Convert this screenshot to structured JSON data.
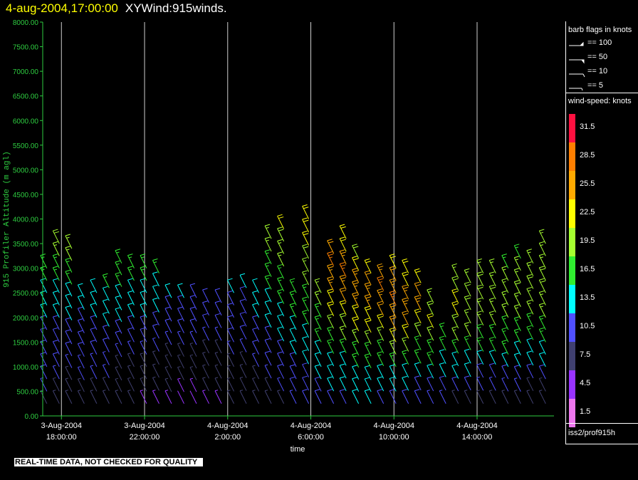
{
  "header": {
    "date_time": "4-aug-2004,17:00:00",
    "title": "XYWind:915winds."
  },
  "colors": {
    "background": "#000000",
    "axis": "#2ecc40",
    "text": "#ffffff",
    "title_date": "#ffff00"
  },
  "legend": {
    "barb_title": "barb flags in knots",
    "barb_entries": [
      "== 100",
      "== 50",
      "== 10",
      "== 5"
    ],
    "speed_title": "wind-speed: knots",
    "speed_levels": [
      {
        "label": "31.5",
        "color": "#ff1040"
      },
      {
        "label": "28.5",
        "color": "#ff7f00"
      },
      {
        "label": "25.5",
        "color": "#ffaa00"
      },
      {
        "label": "22.5",
        "color": "#ffff00"
      },
      {
        "label": "19.5",
        "color": "#a6ff30"
      },
      {
        "label": "16.5",
        "color": "#30ee30"
      },
      {
        "label": "13.5",
        "color": "#00ffff"
      },
      {
        "label": "10.5",
        "color": "#5050ff"
      },
      {
        "label": "7.5",
        "color": "#404070"
      },
      {
        "label": "4.5",
        "color": "#9933ff"
      },
      {
        "label": "1.5",
        "color": "#ee77ee"
      }
    ],
    "source": "iss2/prof915h"
  },
  "footer": {
    "disclaimer": "REAL-TIME DATA, NOT CHECKED FOR QUALITY"
  },
  "chart_data": {
    "type": "scatter",
    "subtype": "wind-barb time-height",
    "xlabel": "time",
    "ylabel": "915 Profiler Altitude (m agl)",
    "ylim": [
      0,
      8000
    ],
    "y_ticks": [
      "0.00",
      "500.00",
      "1000.00",
      "1500.00",
      "2000.00",
      "2500.00",
      "3000.00",
      "3500.00",
      "4000.00",
      "4500.00",
      "5000.00",
      "5500.00",
      "6000.00",
      "6500.00",
      "7000.00",
      "7500.00",
      "8000.00"
    ],
    "x_ticks": [
      {
        "date": "3-Aug-2004",
        "time": "18:00:00"
      },
      {
        "date": "3-Aug-2004",
        "time": "22:00:00"
      },
      {
        "date": "4-Aug-2004",
        "time": "2:00:00"
      },
      {
        "date": "4-Aug-2004",
        "time": "6:00:00"
      },
      {
        "date": "4-Aug-2004",
        "time": "10:00:00"
      },
      {
        "date": "4-Aug-2004",
        "time": "14:00:00"
      }
    ],
    "x_range_hours": [
      17.1,
      41.7
    ],
    "x_tick_hours": [
      18,
      22,
      26,
      30,
      34,
      38
    ],
    "grid_x": true,
    "wind_speed_units": "knots",
    "profiles": [
      {
        "t": 17.3,
        "top": 3000,
        "speeds": [
          8,
          9,
          10,
          10,
          10,
          11,
          11,
          12,
          13,
          14,
          15,
          17
        ]
      },
      {
        "t": 17.9,
        "top": 3500,
        "speeds": [
          7,
          8,
          9,
          10,
          10,
          11,
          11,
          12,
          13,
          14,
          15,
          16,
          18,
          20
        ]
      },
      {
        "t": 18.5,
        "top": 3400,
        "speeds": [
          7,
          8,
          8,
          9,
          10,
          10,
          11,
          12,
          13,
          14,
          15,
          16,
          18,
          19
        ]
      },
      {
        "t": 19.1,
        "top": 2400,
        "speeds": [
          7,
          8,
          9,
          9,
          10,
          10,
          11,
          11,
          12,
          13
        ]
      },
      {
        "t": 19.7,
        "top": 2500,
        "speeds": [
          8,
          8,
          9,
          9,
          10,
          11,
          11,
          12,
          13,
          14
        ]
      },
      {
        "t": 20.3,
        "top": 2600,
        "speeds": [
          7,
          8,
          9,
          9,
          10,
          11,
          12,
          13,
          14,
          15
        ]
      },
      {
        "t": 20.9,
        "top": 3100,
        "speeds": [
          6,
          7,
          8,
          8,
          9,
          10,
          11,
          12,
          13,
          14,
          15,
          16,
          17
        ]
      },
      {
        "t": 21.5,
        "top": 3000,
        "speeds": [
          6,
          6,
          7,
          8,
          9,
          10,
          11,
          12,
          13,
          14,
          15,
          16
        ]
      },
      {
        "t": 22.1,
        "top": 3000,
        "speeds": [
          5,
          6,
          7,
          8,
          9,
          10,
          11,
          12,
          13,
          14,
          15,
          16
        ]
      },
      {
        "t": 22.7,
        "top": 2900,
        "speeds": [
          5,
          6,
          7,
          8,
          9,
          10,
          11,
          12,
          13,
          14,
          15
        ]
      },
      {
        "t": 23.3,
        "top": 2400,
        "speeds": [
          5,
          6,
          6,
          7,
          8,
          9,
          10,
          10,
          11,
          12
        ]
      },
      {
        "t": 23.9,
        "top": 2400,
        "speeds": [
          4,
          5,
          6,
          7,
          8,
          9,
          10,
          10,
          11,
          12
        ]
      },
      {
        "t": 24.5,
        "top": 2400,
        "speeds": [
          4,
          5,
          6,
          7,
          8,
          9,
          10,
          10,
          11,
          11
        ]
      },
      {
        "t": 25.1,
        "top": 2300,
        "speeds": [
          5,
          6,
          7,
          7,
          8,
          9,
          10,
          10,
          11
        ]
      },
      {
        "t": 25.7,
        "top": 2300,
        "speeds": [
          5,
          6,
          7,
          8,
          8,
          9,
          10,
          10,
          11
        ]
      },
      {
        "t": 26.3,
        "top": 2500,
        "speeds": [
          6,
          7,
          7,
          8,
          9,
          10,
          10,
          11,
          11,
          12
        ]
      },
      {
        "t": 26.9,
        "top": 2600,
        "speeds": [
          6,
          7,
          8,
          8,
          9,
          10,
          10,
          11,
          11,
          12
        ]
      },
      {
        "t": 27.5,
        "top": 2500,
        "speeds": [
          7,
          8,
          8,
          9,
          10,
          10,
          11,
          12,
          13,
          14
        ]
      },
      {
        "t": 28.1,
        "top": 3600,
        "speeds": [
          7,
          8,
          9,
          10,
          10,
          11,
          12,
          13,
          14,
          15,
          16,
          17,
          18,
          19
        ]
      },
      {
        "t": 28.7,
        "top": 3800,
        "speeds": [
          8,
          9,
          10,
          10,
          11,
          12,
          13,
          14,
          15,
          16,
          17,
          18,
          19,
          20,
          21
        ]
      },
      {
        "t": 29.3,
        "top": 2500,
        "speeds": [
          9,
          10,
          10,
          11,
          12,
          13,
          14,
          15,
          16,
          17
        ]
      },
      {
        "t": 29.9,
        "top": 4000,
        "speeds": [
          10,
          10,
          11,
          12,
          13,
          14,
          15,
          16,
          17,
          18,
          19,
          20,
          21,
          22,
          23
        ]
      },
      {
        "t": 30.5,
        "top": 2500,
        "speeds": [
          10,
          11,
          12,
          13,
          14,
          15,
          16,
          17,
          18,
          19
        ]
      },
      {
        "t": 31.1,
        "top": 3300,
        "speeds": [
          11,
          12,
          13,
          14,
          15,
          17,
          19,
          21,
          23,
          25,
          26,
          27,
          24
        ]
      },
      {
        "t": 31.7,
        "top": 3600,
        "speeds": [
          11,
          12,
          13,
          14,
          16,
          18,
          20,
          22,
          24,
          26,
          27,
          26,
          23,
          21
        ]
      },
      {
        "t": 32.3,
        "top": 3200,
        "speeds": [
          12,
          13,
          14,
          15,
          17,
          19,
          21,
          23,
          25,
          26,
          25,
          22,
          20
        ]
      },
      {
        "t": 32.9,
        "top": 2900,
        "speeds": [
          12,
          13,
          14,
          15,
          17,
          19,
          21,
          23,
          25,
          26,
          24,
          21
        ]
      },
      {
        "t": 33.5,
        "top": 2800,
        "speeds": [
          11,
          12,
          13,
          15,
          17,
          19,
          22,
          24,
          26,
          27,
          25
        ]
      },
      {
        "t": 34.1,
        "top": 3000,
        "speeds": [
          11,
          12,
          14,
          16,
          18,
          21,
          24,
          26,
          27,
          26,
          24,
          22
        ]
      },
      {
        "t": 34.7,
        "top": 2900,
        "speeds": [
          10,
          12,
          14,
          16,
          18,
          21,
          24,
          26,
          25,
          23,
          21
        ]
      },
      {
        "t": 35.3,
        "top": 2700,
        "speeds": [
          10,
          11,
          13,
          15,
          17,
          20,
          23,
          25,
          24,
          22
        ]
      },
      {
        "t": 35.9,
        "top": 2300,
        "speeds": [
          9,
          11,
          13,
          15,
          17,
          19,
          21,
          20,
          19
        ]
      },
      {
        "t": 36.5,
        "top": 1600,
        "speeds": [
          9,
          10,
          12,
          14,
          15,
          16
        ]
      },
      {
        "t": 37.1,
        "top": 2800,
        "speeds": [
          8,
          10,
          12,
          14,
          16,
          18,
          20,
          21,
          21,
          20,
          19
        ]
      },
      {
        "t": 37.7,
        "top": 2700,
        "speeds": [
          8,
          10,
          12,
          14,
          16,
          18,
          19,
          20,
          20,
          19
        ]
      },
      {
        "t": 38.3,
        "top": 2900,
        "speeds": [
          8,
          9,
          11,
          13,
          15,
          17,
          18,
          19,
          20,
          20,
          19
        ]
      },
      {
        "t": 38.9,
        "top": 2900,
        "speeds": [
          7,
          9,
          11,
          13,
          15,
          17,
          18,
          19,
          20,
          19,
          18
        ]
      },
      {
        "t": 39.5,
        "top": 3000,
        "speeds": [
          7,
          9,
          11,
          13,
          15,
          16,
          17,
          18,
          19,
          19,
          18,
          17
        ]
      },
      {
        "t": 40.1,
        "top": 3200,
        "speeds": [
          7,
          9,
          11,
          12,
          14,
          16,
          17,
          18,
          19,
          20,
          19,
          18,
          17
        ]
      },
      {
        "t": 40.7,
        "top": 3100,
        "speeds": [
          7,
          8,
          10,
          12,
          14,
          16,
          17,
          18,
          19,
          20,
          19,
          18
        ]
      },
      {
        "t": 41.3,
        "top": 3500,
        "speeds": [
          7,
          8,
          10,
          12,
          14,
          16,
          17,
          18,
          19,
          20,
          20,
          19,
          18,
          18
        ]
      }
    ]
  }
}
